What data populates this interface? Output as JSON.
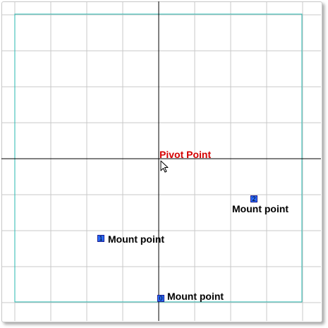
{
  "colors": {
    "grid": "#c8c8c8",
    "axis": "#000000",
    "boundary": "#27b8b0",
    "pivot_text": "#d40000",
    "marker_fill": "#2a6cff",
    "label_text": "#000000"
  },
  "pivot": {
    "label": "Pivot Point"
  },
  "mount_points": [
    {
      "index": "0",
      "label": "Mount point"
    },
    {
      "index": "1",
      "label": "Mount point"
    },
    {
      "index": "2",
      "label": "Mount point"
    }
  ],
  "cursor_icon": "arrow-cursor-icon"
}
